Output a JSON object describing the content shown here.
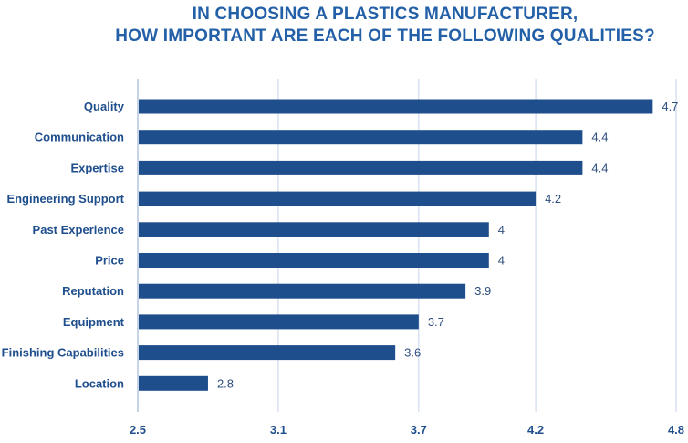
{
  "chart_data": {
    "type": "bar",
    "orientation": "horizontal",
    "title_lines": [
      "IN CHOOSING A PLASTICS MANUFACTURER,",
      "HOW IMPORTANT ARE EACH OF THE FOLLOWING QUALITIES?"
    ],
    "categories": [
      "Quality",
      "Communication",
      "Expertise",
      "Engineering Support",
      "Past Experience",
      "Price",
      "Reputation",
      "Equipment",
      "Finishing Capabilities",
      "Location"
    ],
    "values": [
      4.7,
      4.4,
      4.4,
      4.2,
      4,
      4,
      3.9,
      3.7,
      3.6,
      2.8
    ],
    "data_labels": [
      "4.7",
      "4.4",
      "4.4",
      "4.2",
      "4",
      "4",
      "3.9",
      "3.7",
      "3.6",
      "2.8"
    ],
    "xlim": [
      2.5,
      4.8
    ],
    "xticks": [
      2.5,
      3.1,
      3.7,
      4.2,
      4.8
    ],
    "xtick_labels": [
      "2.5",
      "3.1",
      "3.7",
      "4.2",
      "4.8"
    ],
    "grid": "vertical",
    "legend": "none",
    "colors": {
      "bar": "#1f4e8c",
      "title": "#2460a7",
      "gridline": "#c5d3e8",
      "axis": "#8fa9cf"
    }
  }
}
